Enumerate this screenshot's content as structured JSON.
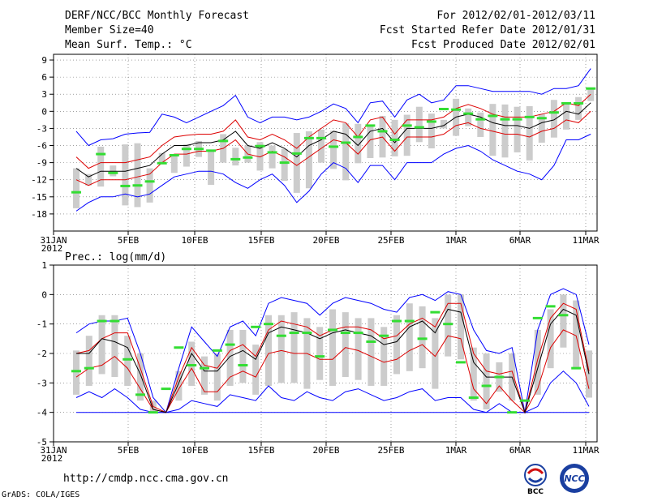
{
  "header": {
    "title": "DERF/NCC/BCC Monthly Forecast",
    "member_size": "Member Size=40",
    "variable_temp": "Mean Surf. Temp.: °C",
    "period": "For 2012/02/01-2012/03/11",
    "started_date": "Fcst Started Refer Date 2012/01/31",
    "produced_date": "Fcst Produced Date 2012/02/01"
  },
  "footer": {
    "url": "http://cmdp.ncc.cma.gov.cn",
    "grads_credit": "GrADS: COLA/IGES",
    "logo_bcc": "BCC",
    "logo_ncc": "NCC"
  },
  "colors": {
    "ensemble_max_min": "#0000ff",
    "percentile_lines": "#dd0000",
    "ensemble_mean": "#000000",
    "observed_bars": "#33dd33",
    "spread_boxes": "#cccccc"
  },
  "chart_data": [
    {
      "type": "line",
      "title": "Mean Surf. Temp.: °C",
      "x_ticks": [
        "31JAN",
        "5FEB",
        "10FEB",
        "15FEB",
        "20FEB",
        "25FEB",
        "1MAR",
        "6MAR",
        "11MAR"
      ],
      "x_tick_year": "2012",
      "ylim": [
        -21,
        10
      ],
      "y_ticks": [
        "9",
        "6",
        "3",
        "0",
        "-3",
        "-6",
        "-9",
        "-12",
        "-15",
        "-18"
      ],
      "series": [
        {
          "name": "max",
          "values": [
            -3.5,
            -6,
            -5,
            -4.8,
            -4,
            -3.8,
            -3.7,
            -0.5,
            -1,
            -2,
            -1,
            0,
            1,
            2.8,
            -1,
            -2,
            -1,
            -1,
            -1.5,
            -1,
            0,
            1.3,
            0.5,
            -2,
            1.5,
            1.8,
            -1,
            2,
            3,
            1.5,
            2,
            4.5,
            4.5,
            4,
            3.5,
            3.5,
            3.5,
            3.5,
            3,
            4,
            4,
            4.5,
            7.5
          ]
        },
        {
          "name": "p75",
          "values": [
            -8,
            -10,
            -9,
            -9,
            -9,
            -8.5,
            -8,
            -6,
            -4.5,
            -4.2,
            -4,
            -4,
            -3.5,
            -1.5,
            -4.5,
            -5,
            -4,
            -5,
            -6.5,
            -4.5,
            -3,
            -1.5,
            -2,
            -4.5,
            -1.5,
            -1,
            -4,
            -1.5,
            -1.5,
            -1.5,
            -1,
            0.5,
            1.2,
            0.5,
            -0.5,
            -1,
            -1,
            -1,
            -0.5,
            0,
            1.5,
            1,
            3
          ]
        },
        {
          "name": "mean",
          "values": [
            -10,
            -11.5,
            -10.5,
            -10.5,
            -10.5,
            -10,
            -9.5,
            -7.5,
            -6,
            -6,
            -5.5,
            -5.5,
            -5,
            -3.5,
            -6,
            -6.5,
            -5.5,
            -6.5,
            -8,
            -6,
            -5,
            -3.5,
            -4,
            -6,
            -3.5,
            -3,
            -5.5,
            -3,
            -3,
            -3,
            -2.5,
            -1,
            -0.5,
            -1,
            -2,
            -2.5,
            -2.5,
            -3,
            -2,
            -1.5,
            0,
            -0.5,
            1.5
          ]
        },
        {
          "name": "p25",
          "values": [
            -12,
            -13,
            -12,
            -12,
            -12,
            -11.5,
            -11,
            -9,
            -7.5,
            -7.5,
            -7,
            -7,
            -6.5,
            -5,
            -7.5,
            -8,
            -7,
            -8,
            -9.5,
            -8,
            -6.5,
            -5,
            -5.5,
            -7.5,
            -5,
            -4.5,
            -7,
            -4.5,
            -4.5,
            -4.5,
            -4,
            -2.5,
            -2,
            -3,
            -3.5,
            -4,
            -4,
            -4.5,
            -3.5,
            -3,
            -1.5,
            -2,
            0
          ]
        },
        {
          "name": "min",
          "values": [
            -17.5,
            -16,
            -15,
            -15,
            -14.5,
            -15,
            -14.5,
            -13,
            -11.5,
            -11,
            -10.5,
            -10.5,
            -11,
            -12.5,
            -13.5,
            -12,
            -11,
            -13,
            -16,
            -14,
            -11,
            -9,
            -10,
            -12.5,
            -9.5,
            -9.5,
            -12,
            -9,
            -9,
            -9,
            -7.5,
            -6.5,
            -6,
            -7,
            -8.5,
            -9.5,
            -10.5,
            -11,
            -12,
            -9.5,
            -5,
            -5,
            -4
          ]
        },
        {
          "name": "observed",
          "values": [
            -14.2,
            null,
            -7.5,
            -10.8,
            -13.1,
            -13,
            -12.3,
            -9.1,
            -7.7,
            -6.6,
            -6.6,
            -6.9,
            -5.2,
            -8.4,
            -8.1,
            -6.1,
            -7.2,
            -9,
            -7.4,
            -4.7,
            -4.7,
            -6.2,
            -5.5,
            -4.5,
            -2.5,
            -3.5,
            -5,
            -2.5,
            -2.8,
            -1.8,
            0.4,
            0.3,
            -0.4,
            -1.4,
            -0.8,
            -1.4,
            -1.4,
            -1,
            -1.2,
            -0.2,
            1.4,
            1.4,
            4
          ]
        },
        {
          "name": "box_high",
          "values": [
            -10,
            -11,
            -6.2,
            -9.5,
            -5.8,
            -5.6,
            -10,
            -7.3,
            -7.5,
            -5.8,
            -5.2,
            -6.8,
            -4,
            -6.4,
            -6,
            -5.4,
            -6,
            -6.6,
            -3.8,
            -3.5,
            -3.2,
            -3.4,
            -2.1,
            -2.2,
            -2.6,
            -0.8,
            -1.5,
            -0.6,
            0.8,
            -0.4,
            -1.5,
            2.2,
            0.5,
            -0.2,
            1.3,
            1.2,
            0.8,
            0.9,
            -0.5,
            2,
            1.3,
            2.5,
            3.9
          ]
        },
        {
          "name": "box_low",
          "values": [
            -17,
            -13,
            -13.2,
            -11.4,
            -16.5,
            -16.8,
            -16,
            -9,
            -10.8,
            -9.7,
            -8,
            -12.9,
            -9,
            -9.5,
            -9,
            -10.4,
            -10,
            -12.2,
            -14.3,
            -13.5,
            -9,
            -10.1,
            -12.1,
            -9.1,
            -8.2,
            -8.1,
            -7.9,
            -7.8,
            -5.4,
            -6.5,
            -3,
            -4.3,
            -2.6,
            -4.5,
            -7.8,
            -8.1,
            -7.2,
            -8.6,
            -5.5,
            -4.6,
            -3.2,
            -1.5,
            1.8
          ]
        }
      ]
    },
    {
      "type": "line",
      "title": "Prec.: log(mm/d)",
      "x_ticks": [
        "31JAN",
        "5FEB",
        "10FEB",
        "15FEB",
        "20FEB",
        "25FEB",
        "1MAR",
        "6MAR",
        "11MAR"
      ],
      "x_tick_year": "2012",
      "ylim": [
        -5,
        1
      ],
      "y_ticks": [
        "1",
        "0",
        "-1",
        "-2",
        "-3",
        "-4",
        "-5"
      ],
      "series": [
        {
          "name": "max",
          "values": [
            -1.3,
            -1,
            -0.9,
            -0.9,
            -0.8,
            -2,
            -3.5,
            -4,
            -2.5,
            -1.1,
            -1.6,
            -2.1,
            -1.1,
            -0.9,
            -1.4,
            -0.3,
            -0.1,
            -0.2,
            -0.3,
            -0.7,
            -0.3,
            -0.1,
            -0.2,
            -0.3,
            -0.5,
            -0.6,
            -0.1,
            0,
            -0.2,
            0.1,
            0,
            -1.2,
            -1.9,
            -2,
            -1.8,
            -4,
            -1.2,
            0,
            0.2,
            0,
            -1.7
          ]
        },
        {
          "name": "p75",
          "values": [
            -2,
            -1.9,
            -1.5,
            -1.3,
            -1.3,
            -2.5,
            -3.8,
            -4,
            -2.8,
            -1.8,
            -2.4,
            -2.5,
            -1.9,
            -1.7,
            -2.1,
            -1.2,
            -0.9,
            -1,
            -1.1,
            -1.4,
            -1.2,
            -1.1,
            -1.1,
            -1.2,
            -1.5,
            -1.4,
            -1,
            -0.8,
            -1.1,
            -0.3,
            -0.3,
            -2,
            -2.6,
            -2.7,
            -2.6,
            -4,
            -2.2,
            -0.8,
            -0.3,
            -0.5,
            -2.6
          ]
        },
        {
          "name": "mean",
          "values": [
            -2,
            -2,
            -1.5,
            -1.6,
            -1.8,
            -2.7,
            -3.9,
            -4,
            -3,
            -2,
            -2.6,
            -2.6,
            -2.1,
            -1.9,
            -2.2,
            -1.3,
            -1.1,
            -1.2,
            -1.3,
            -1.5,
            -1.3,
            -1.2,
            -1.3,
            -1.4,
            -1.7,
            -1.6,
            -1.1,
            -0.9,
            -1.3,
            -0.5,
            -0.6,
            -2.3,
            -2.8,
            -2.8,
            -2.8,
            -4,
            -2.5,
            -1,
            -0.5,
            -0.7,
            -2.7
          ]
        },
        {
          "name": "p25",
          "values": [
            -2.8,
            -2.5,
            -2.4,
            -2.1,
            -2.5,
            -3.2,
            -3.9,
            -4,
            -3.2,
            -2.5,
            -3.3,
            -3.3,
            -2.8,
            -2.6,
            -2.8,
            -2,
            -1.9,
            -2,
            -2,
            -2.2,
            -2.2,
            -1.8,
            -1.9,
            -2.1,
            -2.3,
            -2.2,
            -1.9,
            -1.7,
            -2.1,
            -1.4,
            -1.5,
            -3.2,
            -3.7,
            -3.1,
            -3.6,
            -4,
            -3.2,
            -1.8,
            -1.2,
            -1.4,
            -3.2
          ]
        },
        {
          "name": "min",
          "values": [
            -3.5,
            -3.3,
            -3.5,
            -3.2,
            -3.5,
            -3.9,
            -4,
            -4,
            -3.9,
            -3.6,
            -3.7,
            -3.8,
            -3.4,
            -3.5,
            -3.6,
            -3.1,
            -3.5,
            -3.6,
            -3.3,
            -3.5,
            -3.6,
            -3.3,
            -3.2,
            -3.4,
            -3.6,
            -3.5,
            -3.3,
            -3.2,
            -3.6,
            -3.5,
            -3.5,
            -3.9,
            -4,
            -3.7,
            -4,
            -4,
            -3.8,
            -3,
            -2.6,
            -3,
            -3.8
          ]
        },
        {
          "name": "lower_bound",
          "values": [
            -4,
            -4,
            -4,
            -4,
            -4,
            -4,
            -4,
            -4,
            -4,
            -4,
            -4,
            -4,
            -4,
            -4,
            -4,
            -4,
            -4,
            -4,
            -4,
            -4,
            -4,
            -4,
            -4,
            -4,
            -4,
            -4,
            -4,
            -4,
            -4,
            -4,
            -4,
            -4,
            -4,
            -4,
            -4,
            -4,
            -4,
            -4,
            -4,
            -4,
            -4
          ]
        },
        {
          "name": "observed",
          "values": [
            -2.6,
            -2.5,
            -0.9,
            -0.9,
            -2.2,
            -3.4,
            -4,
            -3.2,
            -1.8,
            -2.4,
            -2.5,
            -1.9,
            -1.7,
            -2.4,
            -1.1,
            -1.0,
            -1.4,
            -1.3,
            -1.3,
            -2.1,
            -1.2,
            -1.3,
            -1.3,
            -1.6,
            -1.4,
            -0.9,
            -0.9,
            -1.5,
            -0.6,
            -1.0,
            -2.3,
            -3.5,
            -3.1,
            -2.8,
            -4,
            -3.6,
            -0.8,
            -0.4,
            -0.7,
            -2.5,
            null
          ]
        },
        {
          "name": "box_high",
          "values": [
            -1.9,
            -1.4,
            -0.7,
            -0.7,
            -1.4,
            -2,
            -3.6,
            -4,
            -2.6,
            -1.6,
            -2.1,
            -2,
            -1.2,
            -1.2,
            -1.7,
            -0.7,
            -0.7,
            -0.6,
            -0.8,
            -1.1,
            -0.5,
            -0.6,
            -0.8,
            -0.8,
            -1.1,
            -0.7,
            -0.3,
            -0.4,
            -0.8,
            0,
            0,
            -1.8,
            -2,
            -2.3,
            -2,
            -4,
            -1.2,
            -0.5,
            0,
            -0.2,
            -1.9
          ]
        },
        {
          "name": "box_low",
          "values": [
            -3.4,
            -3.1,
            -2.7,
            -2.8,
            -3.1,
            -3.6,
            -4,
            -4,
            -3.6,
            -3.1,
            -3.4,
            -3.6,
            -3.1,
            -3,
            -3.4,
            -3.1,
            -3,
            -3,
            -3.2,
            -2.9,
            -3.1,
            -2.8,
            -2.9,
            -3.1,
            -3.1,
            -2.7,
            -2.6,
            -2.5,
            -3.2,
            -2.1,
            -2.2,
            -3.6,
            -3.9,
            -3.3,
            -3.6,
            -4,
            -3.4,
            -2.5,
            -1.8,
            -2.5,
            -3.5
          ]
        }
      ]
    }
  ]
}
